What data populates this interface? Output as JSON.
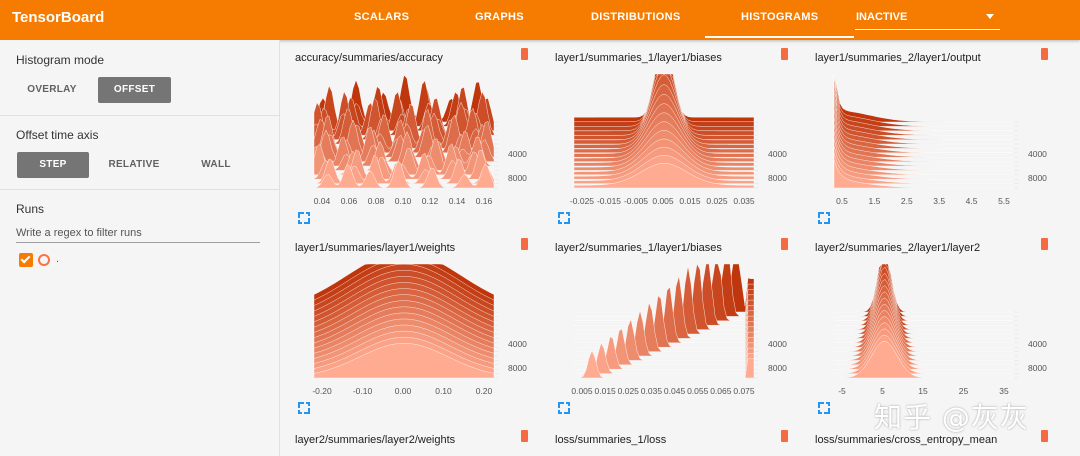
{
  "app": {
    "title": "TensorBoard"
  },
  "nav": {
    "tabs": [
      {
        "label": "SCALARS"
      },
      {
        "label": "GRAPHS"
      },
      {
        "label": "DISTRIBUTIONS"
      },
      {
        "label": "HISTOGRAMS",
        "active": true
      }
    ],
    "inactive_select": {
      "value": "INACTIVE"
    }
  },
  "sidebar": {
    "histogram_mode": {
      "label": "Histogram mode",
      "options": [
        "OVERLAY",
        "OFFSET"
      ],
      "selected": "OFFSET"
    },
    "offset_axis": {
      "label": "Offset time axis",
      "options": [
        "STEP",
        "RELATIVE",
        "WALL"
      ],
      "selected": "STEP"
    },
    "runs": {
      "label": "Runs",
      "filter_placeholder": "Write a regex to filter runs",
      "items": [
        {
          "name": ".",
          "checked": true
        }
      ]
    }
  },
  "theme": {
    "accent": "#f57c00",
    "dark_slice": "#bf360c",
    "light_slice": "#ffab91"
  },
  "cards": [
    {
      "title": "accuracy/summaries/accuracy",
      "y_ticks": [
        "4000",
        "8000"
      ],
      "x_ticks": [
        "0.04",
        "0.06",
        "0.08",
        "0.10",
        "0.12",
        "0.14",
        "0.16"
      ],
      "shape": "spiky"
    },
    {
      "title": "layer1/summaries_1/layer1/biases",
      "y_ticks": [
        "4000",
        "8000"
      ],
      "x_ticks": [
        "-0.025",
        "-0.015",
        "-0.005",
        "0.005",
        "0.015",
        "0.025",
        "0.035"
      ],
      "shape": "peak"
    },
    {
      "title": "layer1/summaries_2/layer1/output",
      "y_ticks": [
        "4000",
        "8000"
      ],
      "x_ticks": [
        "0.5",
        "1.5",
        "2.5",
        "3.5",
        "4.5",
        "5.5"
      ],
      "shape": "decay"
    },
    {
      "title": "layer1/summaries/layer1/weights",
      "y_ticks": [
        "4000",
        "8000"
      ],
      "x_ticks": [
        "-0.20",
        "-0.10",
        "0.00",
        "0.10",
        "0.20"
      ],
      "shape": "dome"
    },
    {
      "title": "layer2/summaries_1/layer1/biases",
      "y_ticks": [
        "4000",
        "8000"
      ],
      "x_ticks": [
        "0.005",
        "0.015",
        "0.025",
        "0.035",
        "0.045",
        "0.055",
        "0.065",
        "0.075"
      ],
      "shape": "falling"
    },
    {
      "title": "layer2/summaries_2/layer1/layer2",
      "y_ticks": [
        "4000",
        "8000"
      ],
      "x_ticks": [
        "-5",
        "5",
        "15",
        "25",
        "35"
      ],
      "shape": "narrow"
    },
    {
      "title": "layer2/summaries/layer2/weights"
    },
    {
      "title": "loss/summaries_1/loss"
    },
    {
      "title": "loss/summaries/cross_entropy_mean"
    }
  ],
  "watermark": "知乎 @灰灰"
}
